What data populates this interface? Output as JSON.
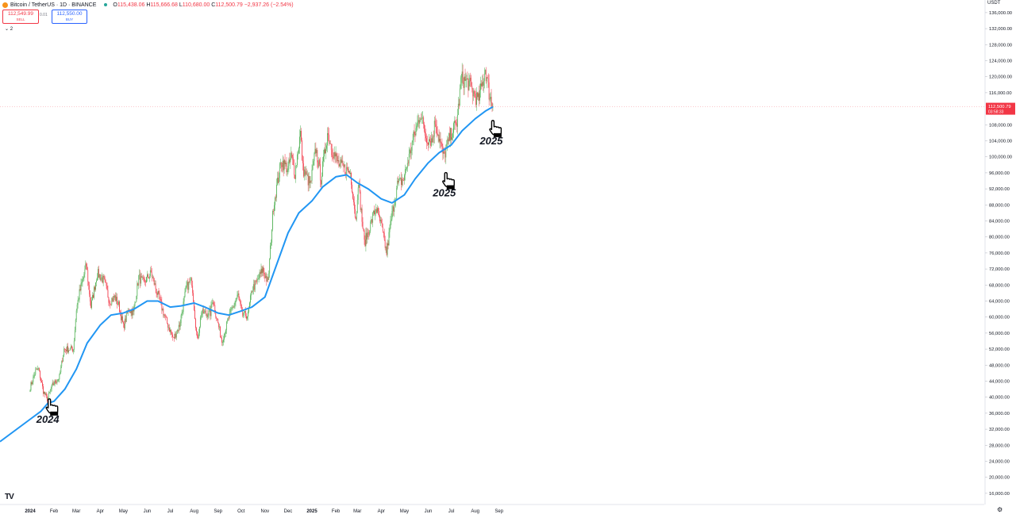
{
  "header": {
    "symbol": "Bitcoin / TetherUS · 1D · BINANCE",
    "ohlc": {
      "o": "115,438.06",
      "h": "115,666.68",
      "l": "110,680.00",
      "c": "112,500.79",
      "chg": "−2,937.26 (−2.54%)"
    },
    "sell_price": "112,549.99",
    "sell_label": "SELL",
    "spread": "0.01",
    "buy_price": "112,550.00",
    "buy_label": "BUY",
    "indicator_count": "2"
  },
  "axis": {
    "currency": "USDT",
    "y_ticks": [
      "136,000.00",
      "132,000.00",
      "128,000.00",
      "124,000.00",
      "120,000.00",
      "116,000.00",
      "108,000.00",
      "104,000.00",
      "100,000.00",
      "96,000.00",
      "92,000.00",
      "88,000.00",
      "84,000.00",
      "80,000.00",
      "76,000.00",
      "72,000.00",
      "68,000.00",
      "64,000.00",
      "60,000.00",
      "56,000.00",
      "52,000.00",
      "48,000.00",
      "44,000.00",
      "40,000.00",
      "36,000.00",
      "32,000.00",
      "28,000.00",
      "24,000.00",
      "20,000.00",
      "16,000.00"
    ],
    "last_price": "112,500.79",
    "countdown": "03:58:33"
  },
  "chart_data": {
    "type": "line",
    "x_labels": [
      "2024",
      "Feb",
      "Mar",
      "Apr",
      "May",
      "Jun",
      "Jul",
      "Aug",
      "Sep",
      "Oct",
      "Nov",
      "Dec",
      "2025",
      "Feb",
      "Mar",
      "Apr",
      "May",
      "Jun",
      "Jul",
      "Aug",
      "Sep"
    ],
    "ylim": [
      14000,
      138000
    ],
    "price_path": [
      [
        "2024-01-01",
        42500
      ],
      [
        "2024-01-08",
        46500
      ],
      [
        "2024-01-12",
        47000
      ],
      [
        "2024-01-18",
        41500
      ],
      [
        "2024-01-23",
        39500
      ],
      [
        "2024-01-30",
        43000
      ],
      [
        "2024-02-08",
        45000
      ],
      [
        "2024-02-14",
        52000
      ],
      [
        "2024-02-26",
        52000
      ],
      [
        "2024-03-01",
        62000
      ],
      [
        "2024-03-05",
        66000
      ],
      [
        "2024-03-14",
        73000
      ],
      [
        "2024-03-20",
        62500
      ],
      [
        "2024-03-28",
        71000
      ],
      [
        "2024-04-06",
        69000
      ],
      [
        "2024-04-13",
        64000
      ],
      [
        "2024-04-20",
        65000
      ],
      [
        "2024-04-25",
        63000
      ],
      [
        "2024-05-01",
        57500
      ],
      [
        "2024-05-08",
        62000
      ],
      [
        "2024-05-14",
        61000
      ],
      [
        "2024-05-21",
        70000
      ],
      [
        "2024-05-27",
        68500
      ],
      [
        "2024-06-06",
        71000
      ],
      [
        "2024-06-14",
        66000
      ],
      [
        "2024-06-24",
        60000
      ],
      [
        "2024-07-05",
        54500
      ],
      [
        "2024-07-13",
        58000
      ],
      [
        "2024-07-22",
        67500
      ],
      [
        "2024-07-29",
        69000
      ],
      [
        "2024-08-05",
        54000
      ],
      [
        "2024-08-10",
        61000
      ],
      [
        "2024-08-22",
        61000
      ],
      [
        "2024-08-25",
        64500
      ],
      [
        "2024-09-06",
        54000
      ],
      [
        "2024-09-15",
        60000
      ],
      [
        "2024-09-27",
        65500
      ],
      [
        "2024-10-02",
        60500
      ],
      [
        "2024-10-10",
        60500
      ],
      [
        "2024-10-15",
        67000
      ],
      [
        "2024-10-21",
        68500
      ],
      [
        "2024-10-29",
        72000
      ],
      [
        "2024-11-05",
        68500
      ],
      [
        "2024-11-12",
        88000
      ],
      [
        "2024-11-22",
        99000
      ],
      [
        "2024-12-01",
        97000
      ],
      [
        "2024-12-05",
        100000
      ],
      [
        "2024-12-10",
        96000
      ],
      [
        "2024-12-17",
        106000
      ],
      [
        "2024-12-20",
        97000
      ],
      [
        "2024-12-30",
        93000
      ],
      [
        "2025-01-06",
        102000
      ],
      [
        "2025-01-13",
        94500
      ],
      [
        "2025-01-21",
        106000
      ],
      [
        "2025-01-27",
        102000
      ],
      [
        "2025-02-05",
        98000
      ],
      [
        "2025-02-20",
        96000
      ],
      [
        "2025-02-27",
        84000
      ],
      [
        "2025-03-02",
        94000
      ],
      [
        "2025-03-10",
        78500
      ],
      [
        "2025-03-18",
        83000
      ],
      [
        "2025-03-25",
        87500
      ],
      [
        "2025-04-01",
        82500
      ],
      [
        "2025-04-08",
        76000
      ],
      [
        "2025-04-14",
        84500
      ],
      [
        "2025-04-22",
        93000
      ],
      [
        "2025-04-30",
        94500
      ],
      [
        "2025-05-12",
        104000
      ],
      [
        "2025-05-22",
        111000
      ],
      [
        "2025-05-29",
        105000
      ],
      [
        "2025-06-06",
        104000
      ],
      [
        "2025-06-10",
        109000
      ],
      [
        "2025-06-21",
        100000
      ],
      [
        "2025-07-01",
        106000
      ],
      [
        "2025-07-08",
        108500
      ],
      [
        "2025-07-14",
        119500
      ],
      [
        "2025-07-23",
        118500
      ],
      [
        "2025-07-31",
        115500
      ],
      [
        "2025-08-05",
        114000
      ],
      [
        "2025-08-11",
        119000
      ],
      [
        "2025-08-14",
        122000
      ],
      [
        "2025-08-19",
        116000
      ],
      [
        "2025-08-21",
        114500
      ],
      [
        "2025-08-24",
        112500
      ]
    ],
    "moving_average": [
      [
        "2024-01-01",
        34500
      ],
      [
        "2024-01-15",
        36500
      ],
      [
        "2024-01-24",
        38500
      ],
      [
        "2024-02-01",
        39000
      ],
      [
        "2024-02-15",
        42000
      ],
      [
        "2024-03-01",
        47000
      ],
      [
        "2024-03-15",
        53500
      ],
      [
        "2024-04-01",
        58000
      ],
      [
        "2024-04-15",
        60500
      ],
      [
        "2024-05-01",
        61000
      ],
      [
        "2024-05-15",
        62000
      ],
      [
        "2024-06-01",
        64000
      ],
      [
        "2024-06-15",
        64000
      ],
      [
        "2024-07-01",
        62500
      ],
      [
        "2024-07-15",
        62800
      ],
      [
        "2024-08-01",
        63500
      ],
      [
        "2024-08-15",
        62500
      ],
      [
        "2024-09-01",
        61000
      ],
      [
        "2024-09-15",
        60500
      ],
      [
        "2024-10-01",
        61500
      ],
      [
        "2024-10-15",
        62500
      ],
      [
        "2024-11-01",
        65000
      ],
      [
        "2024-11-15",
        72500
      ],
      [
        "2024-12-01",
        81000
      ],
      [
        "2024-12-15",
        86000
      ],
      [
        "2025-01-01",
        89000
      ],
      [
        "2025-01-15",
        92500
      ],
      [
        "2025-02-01",
        95000
      ],
      [
        "2025-02-15",
        95500
      ],
      [
        "2025-03-01",
        93500
      ],
      [
        "2025-03-15",
        92000
      ],
      [
        "2025-04-01",
        89500
      ],
      [
        "2025-04-15",
        88500
      ],
      [
        "2025-05-01",
        90500
      ],
      [
        "2025-05-15",
        94500
      ],
      [
        "2025-06-01",
        98500
      ],
      [
        "2025-06-15",
        101000
      ],
      [
        "2025-07-01",
        103000
      ],
      [
        "2025-07-15",
        106500
      ],
      [
        "2025-08-01",
        109500
      ],
      [
        "2025-08-15",
        111500
      ],
      [
        "2025-08-24",
        112500
      ]
    ],
    "annotations": [
      {
        "label": "2024",
        "date": "2024-01-28",
        "price": 37000
      },
      {
        "label": "2025",
        "date": "2025-06-26",
        "price": 93500
      },
      {
        "label": "2025",
        "date": "2025-08-26",
        "price": 106500
      }
    ]
  },
  "colors": {
    "up": "#26a69a",
    "up_candle": "#4caf50",
    "down": "#f23645",
    "ma": "#2196f3",
    "axis_text": "#131722",
    "border": "#e0e3eb"
  }
}
